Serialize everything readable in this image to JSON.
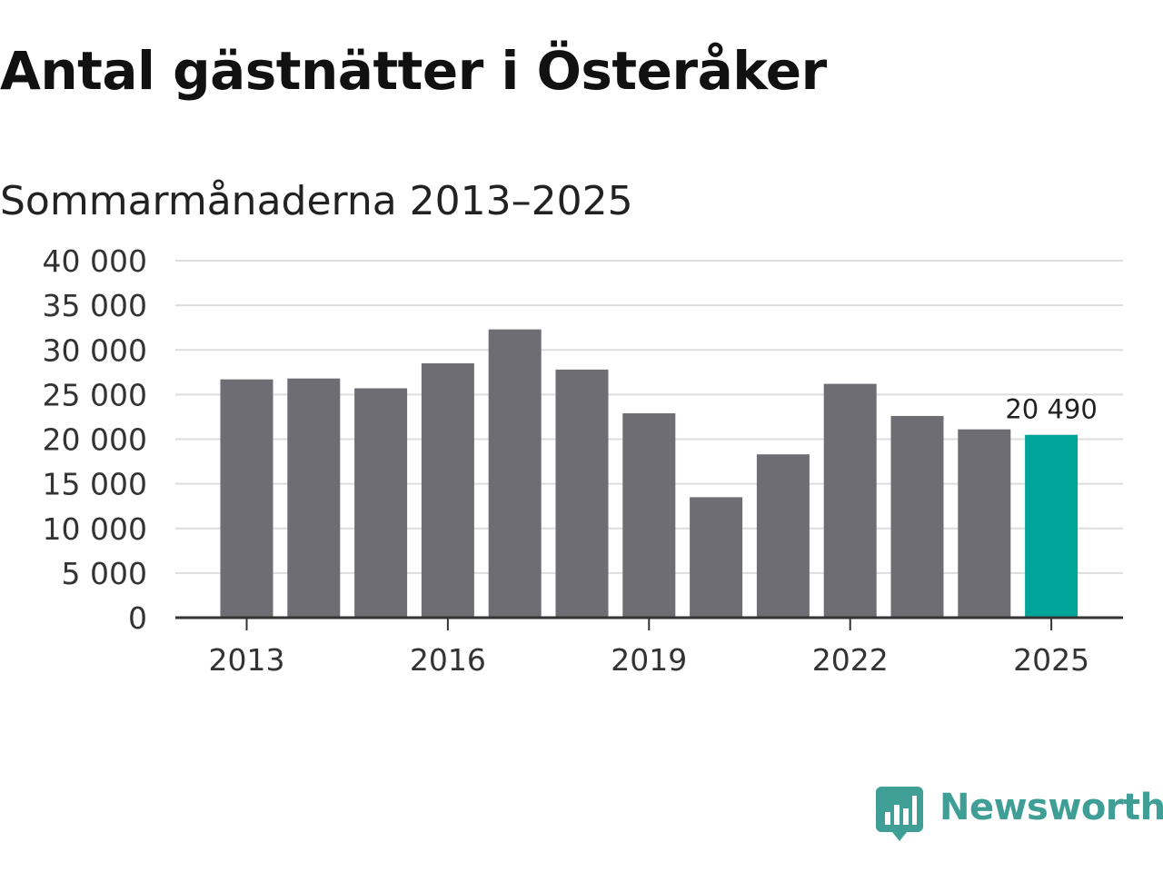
{
  "chart_data": {
    "type": "bar",
    "title": "Antal gästnätter i Österåker",
    "subtitle": "Sommarmånaderna 2013–2025",
    "xlabel": "",
    "ylabel": "",
    "categories": [
      "2013",
      "2014",
      "2015",
      "2016",
      "2017",
      "2018",
      "2019",
      "2020",
      "2021",
      "2022",
      "2023",
      "2024",
      "2025"
    ],
    "x_tick_labels": [
      "2013",
      "2016",
      "2019",
      "2022",
      "2025"
    ],
    "values": [
      26700,
      26800,
      25700,
      28500,
      32300,
      27800,
      22900,
      13500,
      18300,
      26200,
      22600,
      21100,
      20490
    ],
    "ylim": [
      0,
      40000
    ],
    "y_ticks": [
      0,
      5000,
      10000,
      15000,
      20000,
      25000,
      30000,
      35000,
      40000
    ],
    "y_tick_labels": [
      "0",
      "5 000",
      "10 000",
      "15 000",
      "20 000",
      "25 000",
      "30 000",
      "35 000",
      "40 000"
    ],
    "highlight_index": 12,
    "highlight_label": "20 490",
    "grid": true,
    "legend": "none",
    "colors": {
      "bar": "#6e6d73",
      "highlight": "#00a499",
      "grid": "#dddddd",
      "axis": "#333333"
    }
  },
  "brand": {
    "name": "Newsworthy",
    "icon": "newsworthy-logo-icon",
    "color": "#3f9e96"
  }
}
